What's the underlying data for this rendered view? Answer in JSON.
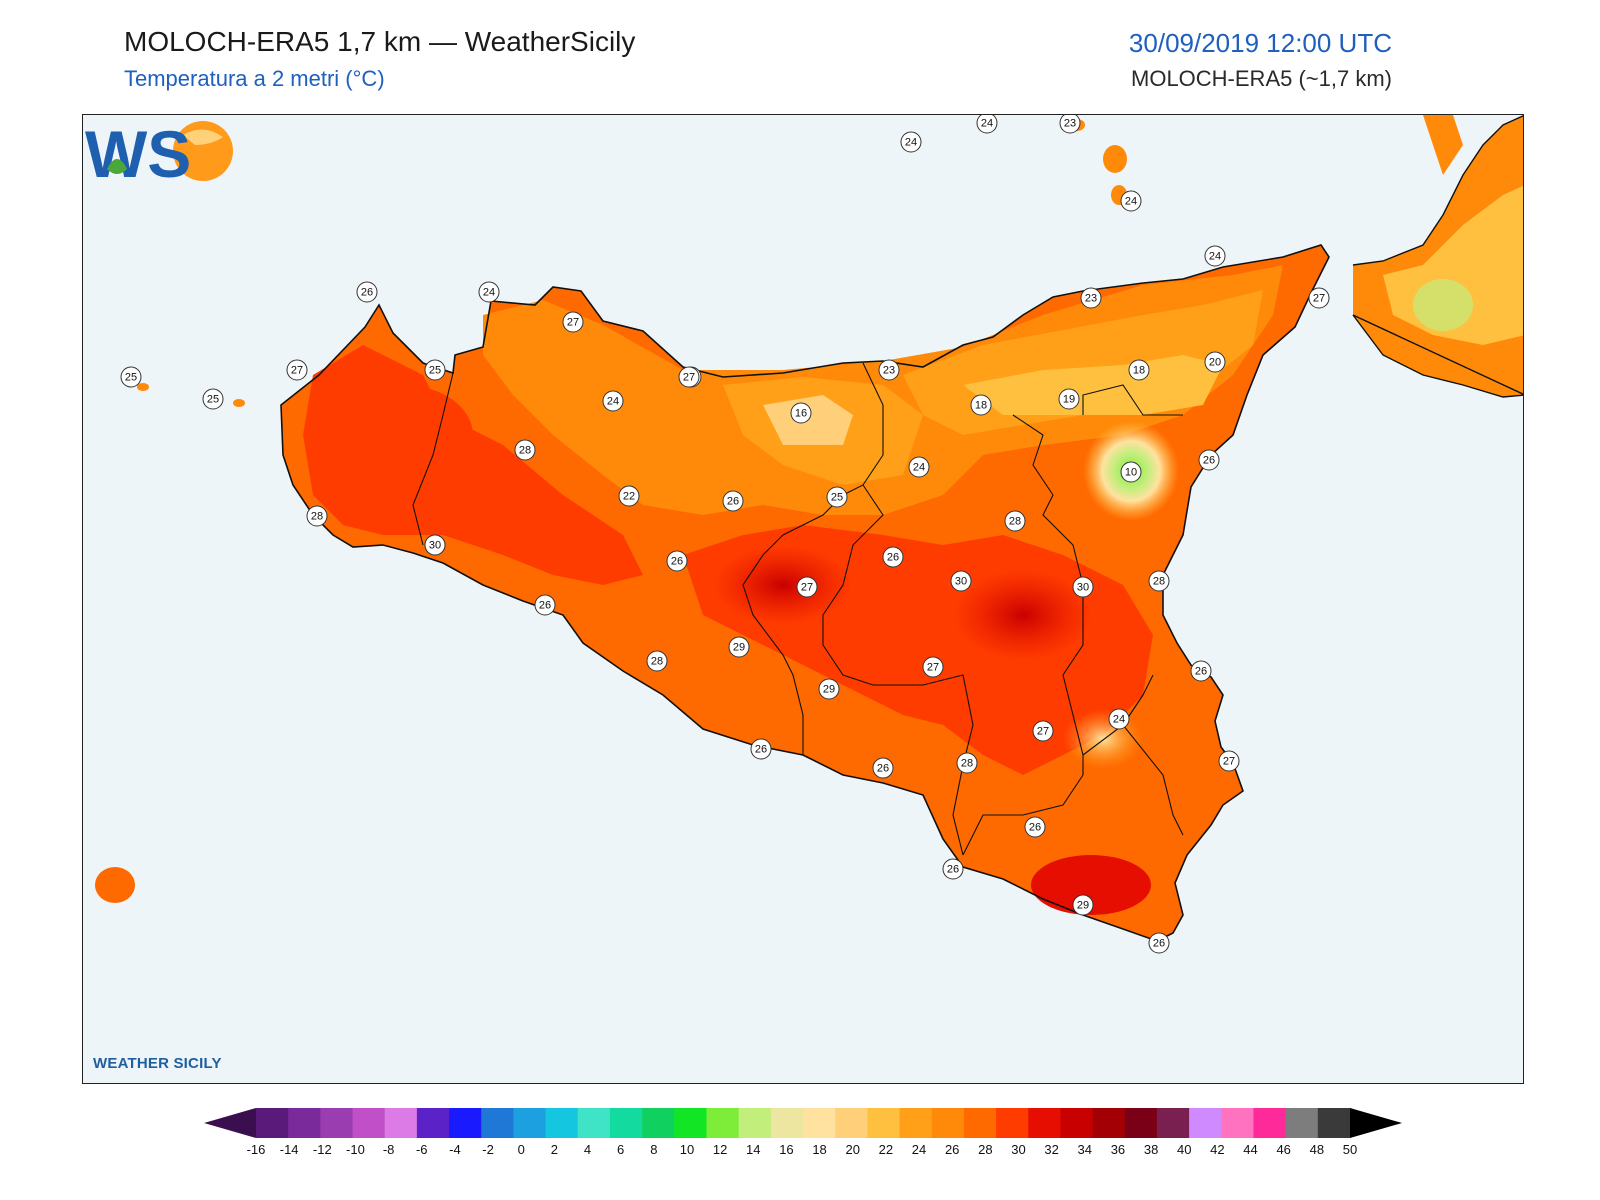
{
  "header": {
    "title": "MOLOCH-ERA5 1,7 km — WeatherSicily",
    "subtitle": "Temperatura a 2 metri (°C)",
    "datetime": "30/09/2019 12:00 UTC",
    "model": "MOLOCH-ERA5 (~1,7 km)"
  },
  "logo": {
    "letters": "WS",
    "text": "WEATHER SICILY"
  },
  "colors": {
    "sea": "#eef5f8",
    "border": "#111111",
    "title": "#1a1a1a",
    "accent": "#1f5fbf"
  },
  "stations": [
    "24",
    "24",
    "23",
    "24",
    "24",
    "26",
    "24",
    "27",
    "23",
    "27",
    "25",
    "27",
    "25",
    "25",
    "25",
    "24",
    "23",
    "18",
    "20",
    "27",
    "16",
    "18",
    "19",
    "28",
    "24",
    "10",
    "26",
    "22",
    "25",
    "26",
    "28",
    "30",
    "28",
    "26",
    "26",
    "30",
    "28",
    "27",
    "30",
    "26",
    "28",
    "29",
    "29",
    "27",
    "24",
    "26",
    "26",
    "27",
    "28",
    "27",
    "26",
    "26",
    "26",
    "29",
    "26",
    "30"
  ],
  "colorbar": {
    "ticks": [
      "-16",
      "-14",
      "-12",
      "-10",
      "-8",
      "-6",
      "-4",
      "-2",
      "0",
      "2",
      "4",
      "6",
      "8",
      "10",
      "12",
      "14",
      "16",
      "18",
      "20",
      "22",
      "24",
      "26",
      "28",
      "30",
      "32",
      "34",
      "36",
      "38",
      "40",
      "42",
      "44",
      "46",
      "48",
      "50"
    ],
    "colors": [
      "#3b0f4f",
      "#5a1a7a",
      "#7a2a9a",
      "#9a3db0",
      "#c04fc8",
      "#dc7ae6",
      "#5b22c8",
      "#1a1aff",
      "#1f78d6",
      "#1ca0e0",
      "#14c6e0",
      "#3fe3c6",
      "#13dba0",
      "#10d060",
      "#12e624",
      "#7ded3a",
      "#c2ee7c",
      "#ece6a0",
      "#ffe2a0",
      "#ffcf7a",
      "#ffc040",
      "#ffa018",
      "#ff8a0a",
      "#ff6a00",
      "#ff3c00",
      "#e60e00",
      "#c80000",
      "#a30005",
      "#7a0018",
      "#7a2050",
      "#d08aff",
      "#ff72c0",
      "#ff2a9a",
      "#7d7d7d",
      "#3a3a3a",
      "#000000"
    ]
  }
}
